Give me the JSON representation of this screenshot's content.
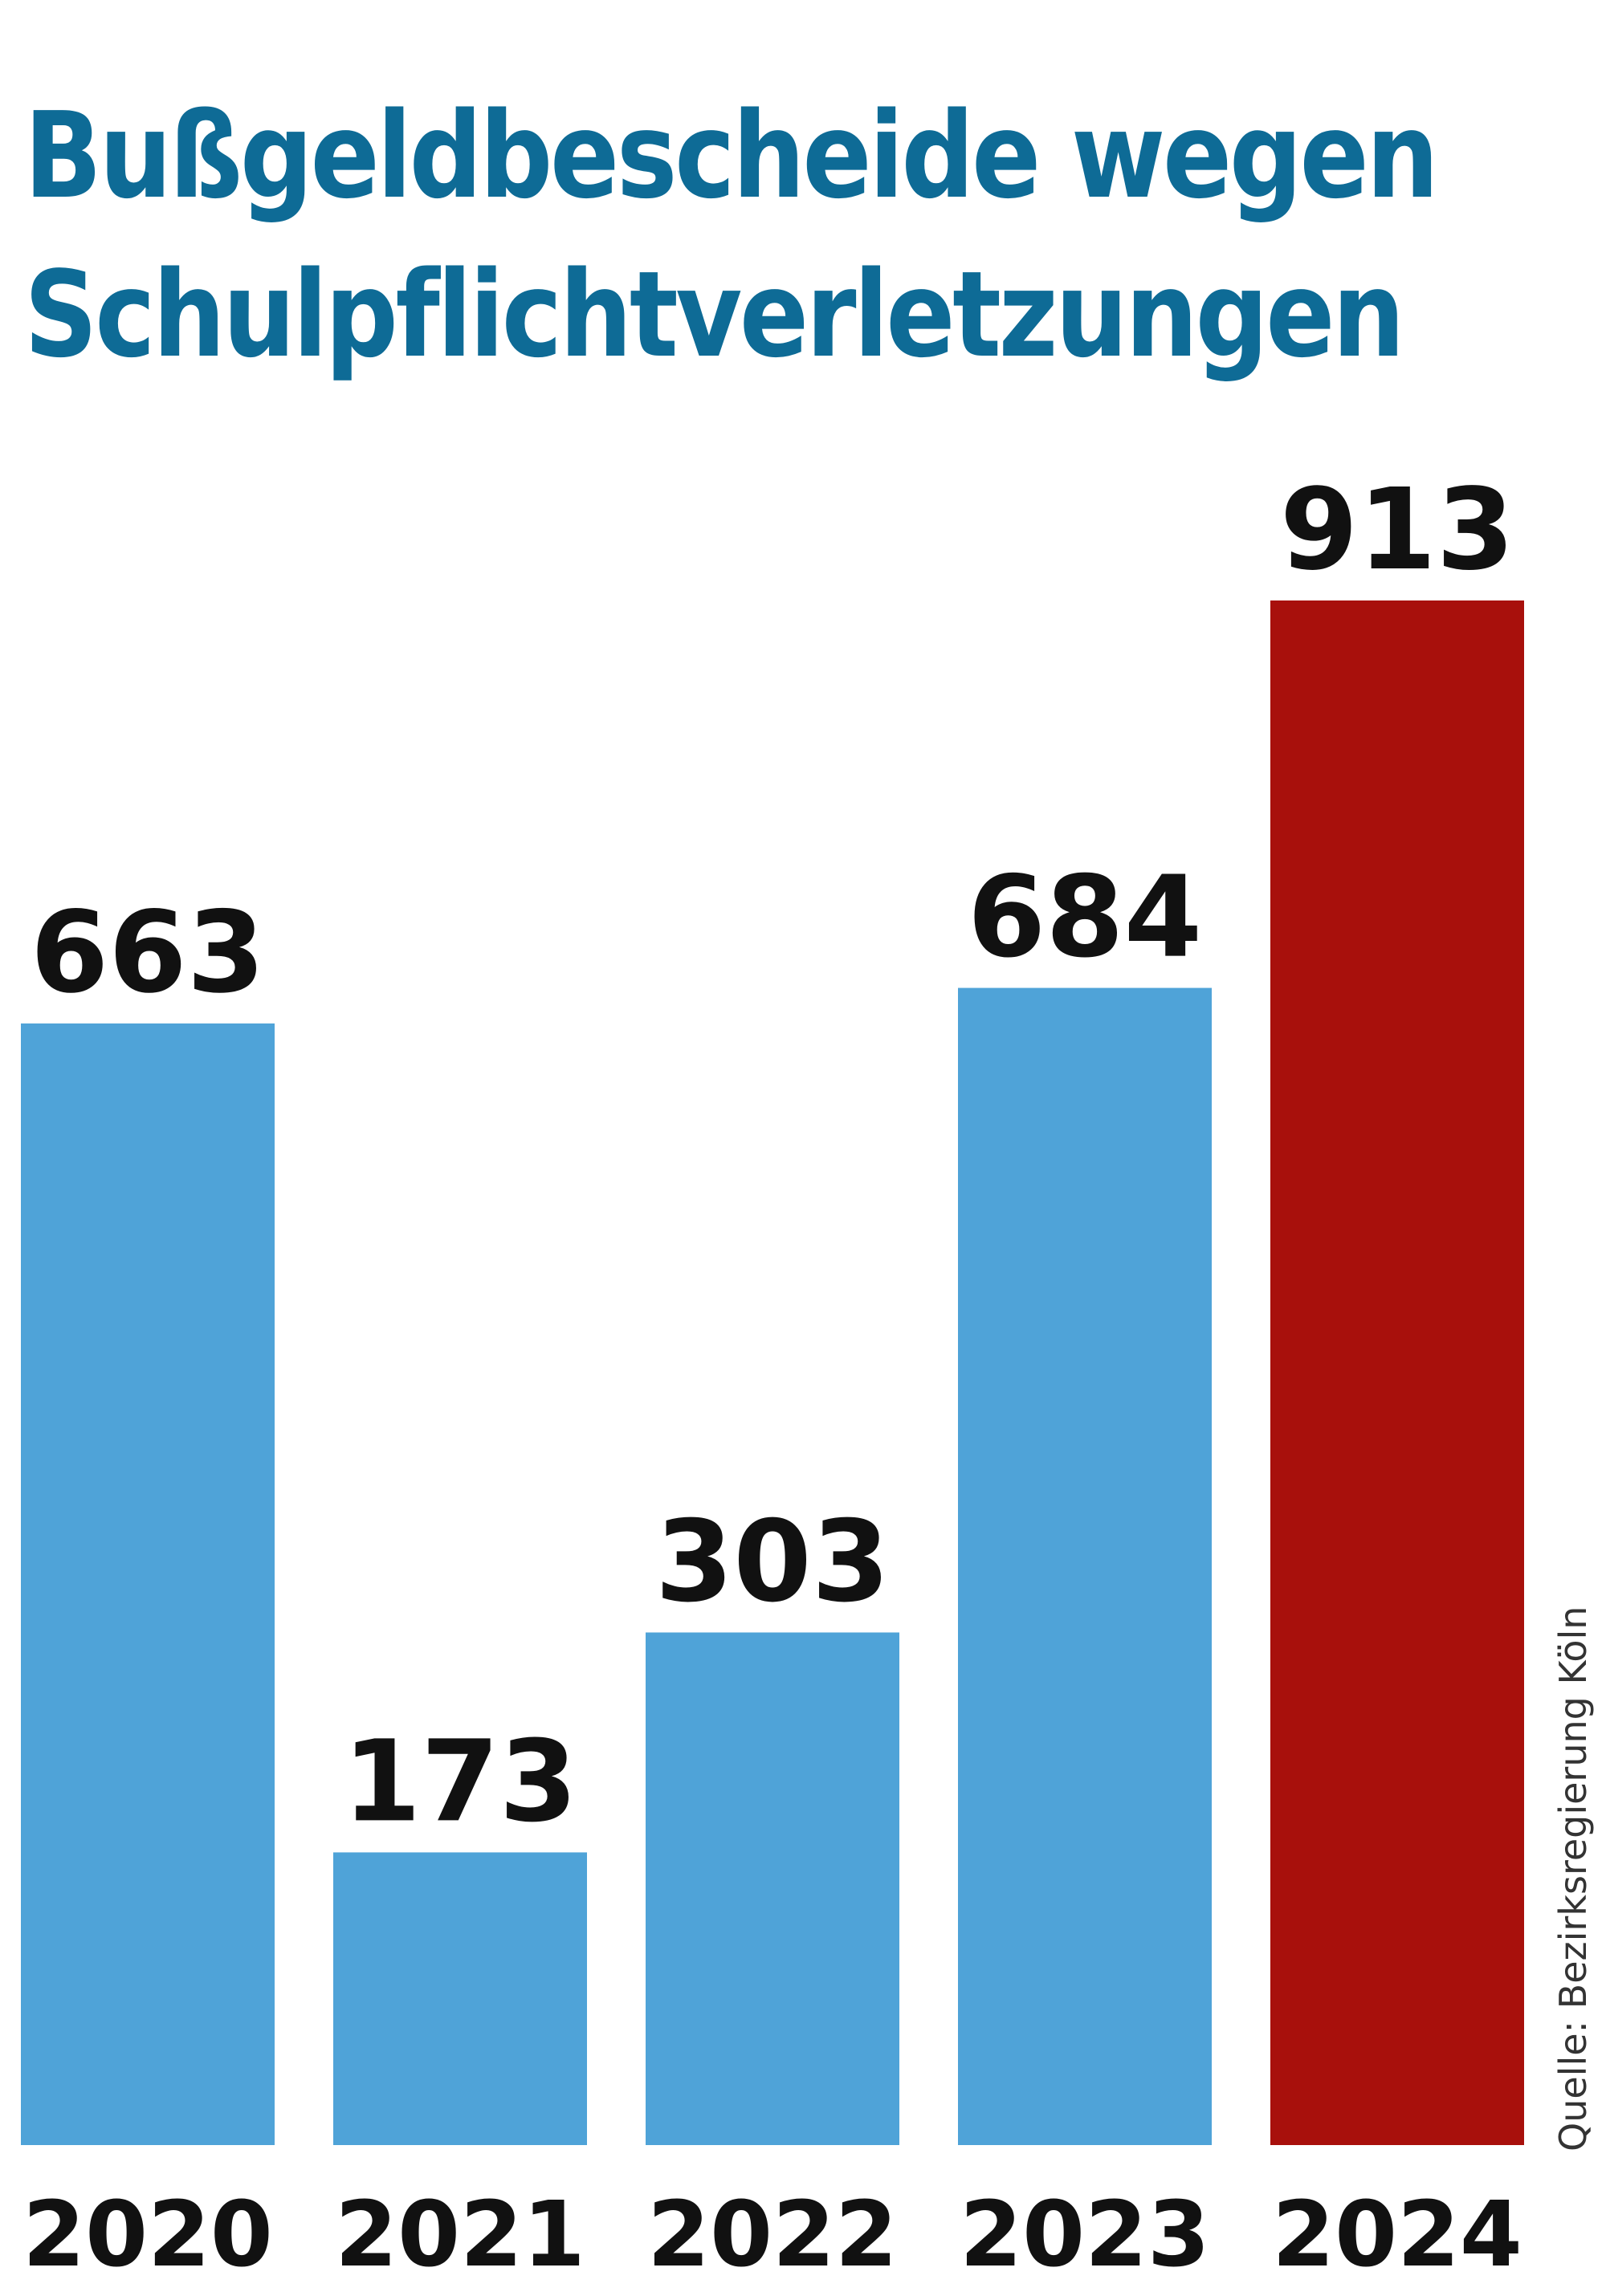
{
  "title_line1": "Bußgeldbescheide wegen",
  "title_line2": "Schulpflichtverletzungen",
  "source": "Quelle: Bezirksregierung Köln",
  "colors": {
    "default_bar": "#4fa3d8",
    "highlight_bar": "#a8100c",
    "title": "#0e6b96"
  },
  "chart_data": {
    "type": "bar",
    "title": "Bußgeldbescheide wegen Schulpflichtverletzungen",
    "categories": [
      "2020",
      "2021",
      "2022",
      "2023",
      "2024"
    ],
    "values": [
      663,
      173,
      303,
      684,
      913
    ],
    "highlight_index": 4,
    "ylim": [
      0,
      913
    ],
    "grid": false
  }
}
